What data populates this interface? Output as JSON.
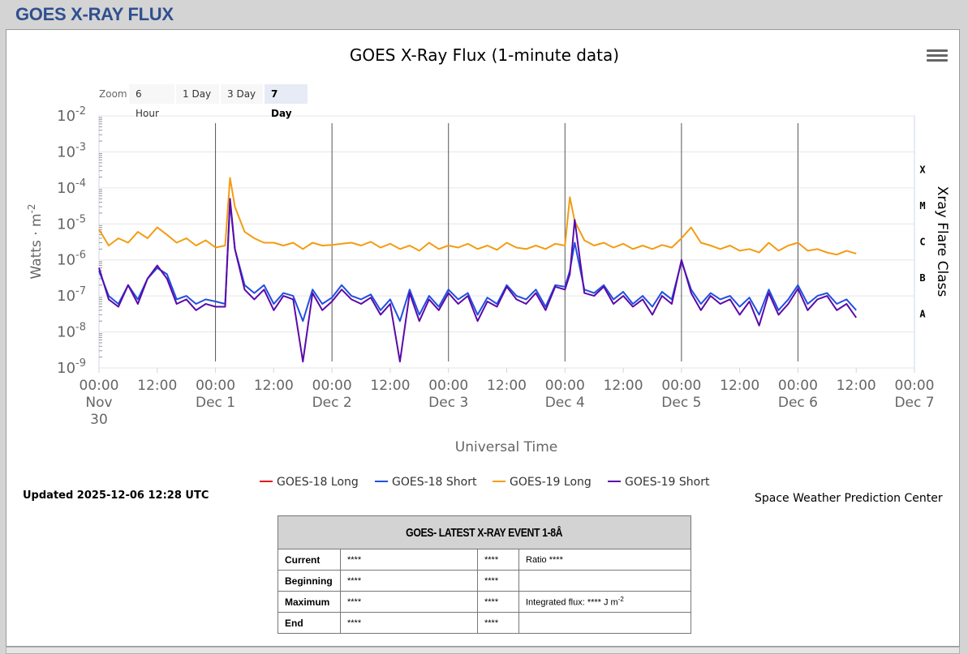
{
  "page": {
    "title": "GOES X-RAY FLUX"
  },
  "toolbar": {
    "zoom_label": "Zoom",
    "zoom_options": [
      "6 Hour",
      "1 Day",
      "3 Day",
      "7 Day"
    ],
    "zoom_selected": "7 Day",
    "menu_icon": "hamburger-menu-icon"
  },
  "updated": "Updated 2025-12-06 12:28 UTC",
  "credit": "Space Weather Prediction Center",
  "chart_data": {
    "type": "line",
    "title": "GOES X-Ray Flux (1-minute data)",
    "xlabel": "Universal Time",
    "ylabel": "Watts · m",
    "ylabel_sup": "-2",
    "y2label": "Xray Flare Class",
    "yscale": "log",
    "ylim": [
      1e-09,
      0.01
    ],
    "yticks": [
      {
        "base": "10",
        "exp": "-2",
        "value": 0.01
      },
      {
        "base": "10",
        "exp": "-3",
        "value": 0.001
      },
      {
        "base": "10",
        "exp": "-4",
        "value": 0.0001
      },
      {
        "base": "10",
        "exp": "-5",
        "value": 1e-05
      },
      {
        "base": "10",
        "exp": "-6",
        "value": 1e-06
      },
      {
        "base": "10",
        "exp": "-7",
        "value": 1e-07
      },
      {
        "base": "10",
        "exp": "-8",
        "value": 1e-08
      },
      {
        "base": "10",
        "exp": "-9",
        "value": 1e-09
      }
    ],
    "flare_classes": [
      {
        "label": "X",
        "value": 0.000316
      },
      {
        "label": "M",
        "value": 3.16e-05
      },
      {
        "label": "C",
        "value": 3.16e-06
      },
      {
        "label": "B",
        "value": 3.16e-07
      },
      {
        "label": "A",
        "value": 3.16e-08
      }
    ],
    "xlim": [
      "2025-11-30T00:00",
      "2025-12-07T00:00"
    ],
    "xticks": [
      {
        "t": "2025-11-30T00:00",
        "line1": "00:00",
        "line2": "Nov",
        "line3": "30"
      },
      {
        "t": "2025-11-30T12:00",
        "line1": "12:00"
      },
      {
        "t": "2025-12-01T00:00",
        "line1": "00:00",
        "line2": "Dec 1"
      },
      {
        "t": "2025-12-01T12:00",
        "line1": "12:00"
      },
      {
        "t": "2025-12-02T00:00",
        "line1": "00:00",
        "line2": "Dec 2"
      },
      {
        "t": "2025-12-02T12:00",
        "line1": "12:00"
      },
      {
        "t": "2025-12-03T00:00",
        "line1": "00:00",
        "line2": "Dec 3"
      },
      {
        "t": "2025-12-03T12:00",
        "line1": "12:00"
      },
      {
        "t": "2025-12-04T00:00",
        "line1": "00:00",
        "line2": "Dec 4"
      },
      {
        "t": "2025-12-04T12:00",
        "line1": "12:00"
      },
      {
        "t": "2025-12-05T00:00",
        "line1": "00:00",
        "line2": "Dec 5"
      },
      {
        "t": "2025-12-05T12:00",
        "line1": "12:00"
      },
      {
        "t": "2025-12-06T00:00",
        "line1": "00:00",
        "line2": "Dec 6"
      },
      {
        "t": "2025-12-06T12:00",
        "line1": "12:00"
      },
      {
        "t": "2025-12-07T00:00",
        "line1": "00:00",
        "line2": "Dec 7"
      }
    ],
    "day_lines": [
      "2025-12-01T00:00",
      "2025-12-02T00:00",
      "2025-12-03T00:00",
      "2025-12-04T00:00",
      "2025-12-05T00:00",
      "2025-12-06T00:00"
    ],
    "legend_position": "bottom",
    "grid": true,
    "series": [
      {
        "name": "GOES-18 Long",
        "color": "#e31a1c",
        "x": [],
        "y": []
      },
      {
        "name": "GOES-18 Short",
        "color": "#1f4fe0",
        "x": [
          "2025-11-30T00:00",
          "2025-11-30T02:00",
          "2025-11-30T04:00",
          "2025-11-30T06:00",
          "2025-11-30T08:00",
          "2025-11-30T10:00",
          "2025-11-30T12:00",
          "2025-11-30T14:00",
          "2025-11-30T16:00",
          "2025-11-30T18:00",
          "2025-11-30T20:00",
          "2025-11-30T22:00",
          "2025-12-01T00:00",
          "2025-12-01T02:00",
          "2025-12-01T03:00",
          "2025-12-01T04:00",
          "2025-12-01T06:00",
          "2025-12-01T08:00",
          "2025-12-01T10:00",
          "2025-12-01T12:00",
          "2025-12-01T14:00",
          "2025-12-01T16:00",
          "2025-12-01T18:00",
          "2025-12-01T20:00",
          "2025-12-01T22:00",
          "2025-12-02T00:00",
          "2025-12-02T02:00",
          "2025-12-02T04:00",
          "2025-12-02T06:00",
          "2025-12-02T08:00",
          "2025-12-02T10:00",
          "2025-12-02T12:00",
          "2025-12-02T14:00",
          "2025-12-02T16:00",
          "2025-12-02T18:00",
          "2025-12-02T20:00",
          "2025-12-02T22:00",
          "2025-12-03T00:00",
          "2025-12-03T02:00",
          "2025-12-03T04:00",
          "2025-12-03T06:00",
          "2025-12-03T08:00",
          "2025-12-03T10:00",
          "2025-12-03T12:00",
          "2025-12-03T14:00",
          "2025-12-03T16:00",
          "2025-12-03T18:00",
          "2025-12-03T20:00",
          "2025-12-03T22:00",
          "2025-12-04T00:00",
          "2025-12-04T01:00",
          "2025-12-04T02:00",
          "2025-12-04T04:00",
          "2025-12-04T06:00",
          "2025-12-04T08:00",
          "2025-12-04T10:00",
          "2025-12-04T12:00",
          "2025-12-04T14:00",
          "2025-12-04T16:00",
          "2025-12-04T18:00",
          "2025-12-04T20:00",
          "2025-12-04T22:00",
          "2025-12-05T00:00",
          "2025-12-05T02:00",
          "2025-12-05T04:00",
          "2025-12-05T06:00",
          "2025-12-05T08:00",
          "2025-12-05T10:00",
          "2025-12-05T12:00",
          "2025-12-05T14:00",
          "2025-12-05T16:00",
          "2025-12-05T18:00",
          "2025-12-05T20:00",
          "2025-12-05T22:00",
          "2025-12-06T00:00",
          "2025-12-06T02:00",
          "2025-12-06T04:00",
          "2025-12-06T06:00",
          "2025-12-06T08:00",
          "2025-12-06T10:00",
          "2025-12-06T12:00"
        ],
        "y": [
          5e-07,
          1e-07,
          6e-08,
          2e-07,
          8e-08,
          3e-07,
          6e-07,
          4e-07,
          8e-08,
          1e-07,
          6e-08,
          8e-08,
          7e-08,
          6e-08,
          4e-05,
          2e-06,
          2e-07,
          1.2e-07,
          2e-07,
          6e-08,
          1.2e-07,
          1e-07,
          2e-08,
          1.5e-07,
          6e-08,
          9e-08,
          2e-07,
          1e-07,
          8e-08,
          1.1e-07,
          4e-08,
          8e-08,
          2e-08,
          1.5e-07,
          3e-08,
          1e-07,
          5e-08,
          1.5e-07,
          8e-08,
          1.2e-07,
          3e-08,
          9e-08,
          6e-08,
          2e-07,
          1e-07,
          8e-08,
          1.5e-07,
          5e-08,
          2e-07,
          1.8e-07,
          5e-07,
          3e-06,
          1.5e-07,
          1.2e-07,
          2e-07,
          8e-08,
          1.3e-07,
          6e-08,
          1e-07,
          5e-08,
          1.3e-07,
          8e-08,
          9e-07,
          1.5e-07,
          6e-08,
          1.2e-07,
          8e-08,
          1e-07,
          5e-08,
          9e-08,
          3e-08,
          1.5e-07,
          4e-08,
          8e-08,
          2e-07,
          6e-08,
          1e-07,
          1.2e-07,
          6e-08,
          8e-08,
          4e-08
        ]
      },
      {
        "name": "GOES-19 Long",
        "color": "#f39c12",
        "x": [
          "2025-11-30T00:00",
          "2025-11-30T02:00",
          "2025-11-30T04:00",
          "2025-11-30T06:00",
          "2025-11-30T08:00",
          "2025-11-30T10:00",
          "2025-11-30T12:00",
          "2025-11-30T14:00",
          "2025-11-30T16:00",
          "2025-11-30T18:00",
          "2025-11-30T20:00",
          "2025-11-30T22:00",
          "2025-12-01T00:00",
          "2025-12-01T02:00",
          "2025-12-01T03:00",
          "2025-12-01T04:00",
          "2025-12-01T06:00",
          "2025-12-01T08:00",
          "2025-12-01T10:00",
          "2025-12-01T12:00",
          "2025-12-01T14:00",
          "2025-12-01T16:00",
          "2025-12-01T18:00",
          "2025-12-01T20:00",
          "2025-12-01T22:00",
          "2025-12-02T00:00",
          "2025-12-02T02:00",
          "2025-12-02T04:00",
          "2025-12-02T06:00",
          "2025-12-02T08:00",
          "2025-12-02T10:00",
          "2025-12-02T12:00",
          "2025-12-02T14:00",
          "2025-12-02T16:00",
          "2025-12-02T18:00",
          "2025-12-02T20:00",
          "2025-12-02T22:00",
          "2025-12-03T00:00",
          "2025-12-03T02:00",
          "2025-12-03T04:00",
          "2025-12-03T06:00",
          "2025-12-03T08:00",
          "2025-12-03T10:00",
          "2025-12-03T12:00",
          "2025-12-03T14:00",
          "2025-12-03T16:00",
          "2025-12-03T18:00",
          "2025-12-03T20:00",
          "2025-12-03T22:00",
          "2025-12-04T00:00",
          "2025-12-04T01:00",
          "2025-12-04T02:00",
          "2025-12-04T04:00",
          "2025-12-04T06:00",
          "2025-12-04T08:00",
          "2025-12-04T10:00",
          "2025-12-04T12:00",
          "2025-12-04T14:00",
          "2025-12-04T16:00",
          "2025-12-04T18:00",
          "2025-12-04T20:00",
          "2025-12-04T22:00",
          "2025-12-05T00:00",
          "2025-12-05T02:00",
          "2025-12-05T04:00",
          "2025-12-05T06:00",
          "2025-12-05T08:00",
          "2025-12-05T10:00",
          "2025-12-05T12:00",
          "2025-12-05T14:00",
          "2025-12-05T16:00",
          "2025-12-05T18:00",
          "2025-12-05T20:00",
          "2025-12-05T22:00",
          "2025-12-06T00:00",
          "2025-12-06T02:00",
          "2025-12-06T04:00",
          "2025-12-06T06:00",
          "2025-12-06T08:00",
          "2025-12-06T10:00",
          "2025-12-06T12:00"
        ],
        "y": [
          7e-06,
          2.5e-06,
          4e-06,
          3e-06,
          6e-06,
          4e-06,
          8e-06,
          5e-06,
          3e-06,
          4e-06,
          2.5e-06,
          3.5e-06,
          2.2e-06,
          2.5e-06,
          0.00019,
          3e-05,
          6e-06,
          4e-06,
          3e-06,
          3e-06,
          2.5e-06,
          3e-06,
          2e-06,
          3e-06,
          2.5e-06,
          2.6e-06,
          2.8e-06,
          3e-06,
          2.5e-06,
          3.2e-06,
          2.2e-06,
          2.8e-06,
          2e-06,
          2.5e-06,
          1.8e-06,
          3e-06,
          2e-06,
          2.5e-06,
          2.2e-06,
          2.8e-06,
          2e-06,
          2.5e-06,
          1.9e-06,
          3e-06,
          2.2e-06,
          2e-06,
          2.5e-06,
          2e-06,
          2.8e-06,
          2.5e-06,
          5.5e-05,
          1.2e-05,
          3.5e-06,
          2.5e-06,
          3e-06,
          2.2e-06,
          2.8e-06,
          2e-06,
          2.5e-06,
          2e-06,
          2.6e-06,
          2.2e-06,
          4e-06,
          8e-06,
          3e-06,
          2.5e-06,
          2e-06,
          2.5e-06,
          1.8e-06,
          2e-06,
          1.6e-06,
          3e-06,
          1.8e-06,
          2.5e-06,
          3e-06,
          1.8e-06,
          2e-06,
          1.6e-06,
          1.4e-06,
          1.8e-06,
          1.5e-06
        ]
      },
      {
        "name": "GOES-19 Short",
        "color": "#5b0aa8",
        "x": [
          "2025-11-30T00:00",
          "2025-11-30T02:00",
          "2025-11-30T04:00",
          "2025-11-30T06:00",
          "2025-11-30T08:00",
          "2025-11-30T10:00",
          "2025-11-30T12:00",
          "2025-11-30T14:00",
          "2025-11-30T16:00",
          "2025-11-30T18:00",
          "2025-11-30T20:00",
          "2025-11-30T22:00",
          "2025-12-01T00:00",
          "2025-12-01T02:00",
          "2025-12-01T03:00",
          "2025-12-01T04:00",
          "2025-12-01T06:00",
          "2025-12-01T08:00",
          "2025-12-01T10:00",
          "2025-12-01T12:00",
          "2025-12-01T14:00",
          "2025-12-01T16:00",
          "2025-12-01T18:00",
          "2025-12-01T20:00",
          "2025-12-01T22:00",
          "2025-12-02T00:00",
          "2025-12-02T02:00",
          "2025-12-02T04:00",
          "2025-12-02T06:00",
          "2025-12-02T08:00",
          "2025-12-02T10:00",
          "2025-12-02T12:00",
          "2025-12-02T14:00",
          "2025-12-02T16:00",
          "2025-12-02T18:00",
          "2025-12-02T20:00",
          "2025-12-02T22:00",
          "2025-12-03T00:00",
          "2025-12-03T02:00",
          "2025-12-03T04:00",
          "2025-12-03T06:00",
          "2025-12-03T08:00",
          "2025-12-03T10:00",
          "2025-12-03T12:00",
          "2025-12-03T14:00",
          "2025-12-03T16:00",
          "2025-12-03T18:00",
          "2025-12-03T20:00",
          "2025-12-03T22:00",
          "2025-12-04T00:00",
          "2025-12-04T01:00",
          "2025-12-04T02:00",
          "2025-12-04T04:00",
          "2025-12-04T06:00",
          "2025-12-04T08:00",
          "2025-12-04T10:00",
          "2025-12-04T12:00",
          "2025-12-04T14:00",
          "2025-12-04T16:00",
          "2025-12-04T18:00",
          "2025-12-04T20:00",
          "2025-12-04T22:00",
          "2025-12-05T00:00",
          "2025-12-05T02:00",
          "2025-12-05T04:00",
          "2025-12-05T06:00",
          "2025-12-05T08:00",
          "2025-12-05T10:00",
          "2025-12-05T12:00",
          "2025-12-05T14:00",
          "2025-12-05T16:00",
          "2025-12-05T18:00",
          "2025-12-05T20:00",
          "2025-12-05T22:00",
          "2025-12-06T00:00",
          "2025-12-06T02:00",
          "2025-12-06T04:00",
          "2025-12-06T06:00",
          "2025-12-06T08:00",
          "2025-12-06T10:00",
          "2025-12-06T12:00"
        ],
        "y": [
          6e-07,
          8e-08,
          5e-08,
          2e-07,
          6e-08,
          3e-07,
          7e-07,
          3e-07,
          6e-08,
          8e-08,
          4e-08,
          6e-08,
          5e-08,
          5e-08,
          5e-05,
          2e-06,
          1.5e-07,
          8e-08,
          1.5e-07,
          4e-08,
          1e-07,
          8e-08,
          1.5e-09,
          1.2e-07,
          4e-08,
          7e-08,
          1.5e-07,
          8e-08,
          6e-08,
          9e-08,
          3e-08,
          6e-08,
          1.5e-09,
          1.2e-07,
          2e-08,
          8e-08,
          4e-08,
          1.2e-07,
          6e-08,
          1e-07,
          2e-08,
          7e-08,
          5e-08,
          1.8e-07,
          8e-08,
          6e-08,
          1.2e-07,
          4e-08,
          1.8e-07,
          1.5e-07,
          4e-07,
          1.3e-05,
          1.2e-07,
          1e-07,
          1.8e-07,
          6e-08,
          1e-07,
          5e-08,
          8e-08,
          3e-08,
          1e-07,
          6e-08,
          1e-06,
          1.2e-07,
          4e-08,
          1e-07,
          6e-08,
          8e-08,
          3e-08,
          7e-08,
          1.5e-08,
          1.2e-07,
          3e-08,
          6e-08,
          1.6e-07,
          4e-08,
          8e-08,
          1e-07,
          4e-08,
          6e-08,
          2.5e-08
        ]
      }
    ]
  },
  "event_table": {
    "title": "GOES- LATEST X-RAY EVENT 1-8Å",
    "rows": [
      {
        "label": "Current",
        "v1": "****",
        "v2": "****",
        "v3": "Ratio ****"
      },
      {
        "label": "Beginning",
        "v1": "****",
        "v2": "****",
        "v3": ""
      },
      {
        "label": "Maximum",
        "v1": "****",
        "v2": "****",
        "v3": "Integrated flux: **** J m"
      },
      {
        "label": "End",
        "v1": "****",
        "v2": "****",
        "v3": ""
      }
    ],
    "flux_unit_sup": "-2"
  }
}
